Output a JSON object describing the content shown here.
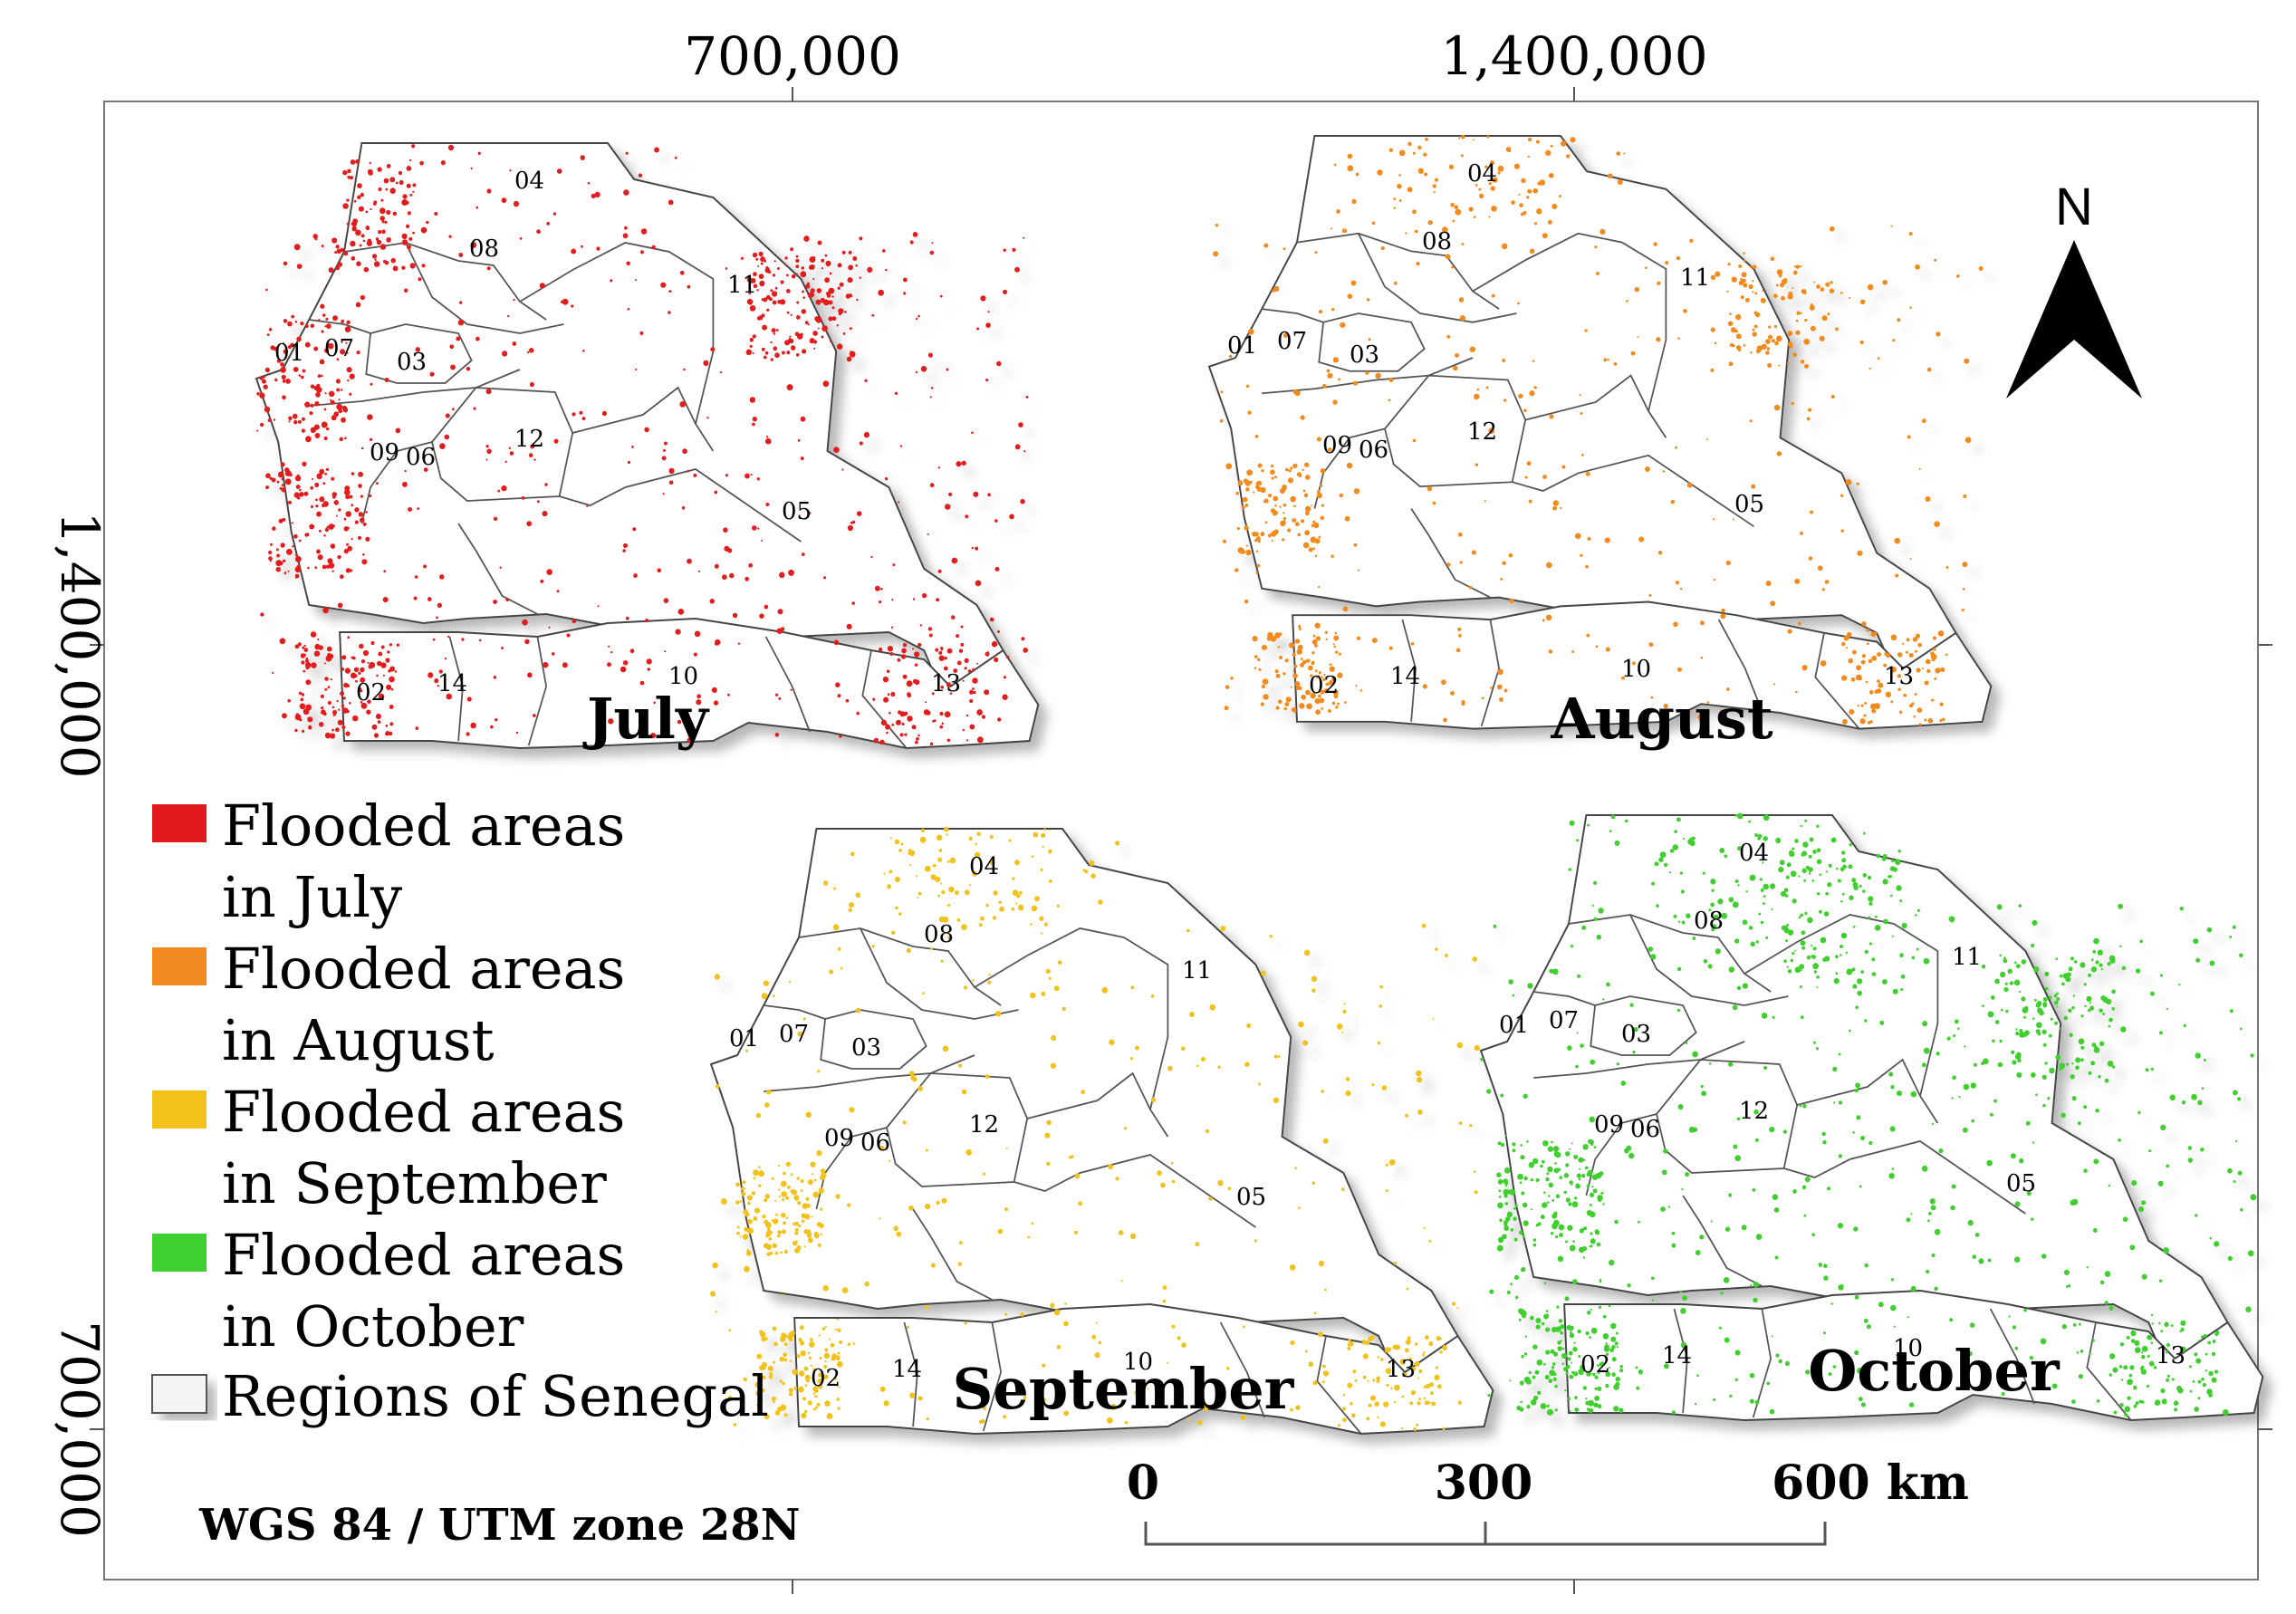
{
  "coords": {
    "top_ticks": [
      "700,000",
      "1,400,000"
    ],
    "left_ticks": [
      "1,400,000",
      "700,000"
    ]
  },
  "panels": [
    {
      "id": "july",
      "title": "July",
      "color": "#e31a1c"
    },
    {
      "id": "august",
      "title": "August",
      "color": "#f28a1f"
    },
    {
      "id": "september",
      "title": "September",
      "color": "#f2c21a"
    },
    {
      "id": "october",
      "title": "October",
      "color": "#3fcf2f"
    }
  ],
  "region_codes": [
    "01",
    "02",
    "03",
    "04",
    "05",
    "06",
    "07",
    "08",
    "09",
    "10",
    "11",
    "12",
    "13",
    "14"
  ],
  "legend": {
    "items": [
      {
        "line1": "Flooded areas",
        "line2": "in July",
        "color": "#e31a1c"
      },
      {
        "line1": "Flooded areas",
        "line2": "in August",
        "color": "#f28a1f"
      },
      {
        "line1": "Flooded areas",
        "line2": "in September",
        "color": "#f2c21a"
      },
      {
        "line1": "Flooded areas",
        "line2": "in October",
        "color": "#3fcf2f"
      }
    ],
    "regions_label": "Regions of Senegal"
  },
  "north_label": "N",
  "scalebar": {
    "labels": [
      "0",
      "300",
      "600 km"
    ]
  },
  "crs": "WGS 84 / UTM zone 28N"
}
